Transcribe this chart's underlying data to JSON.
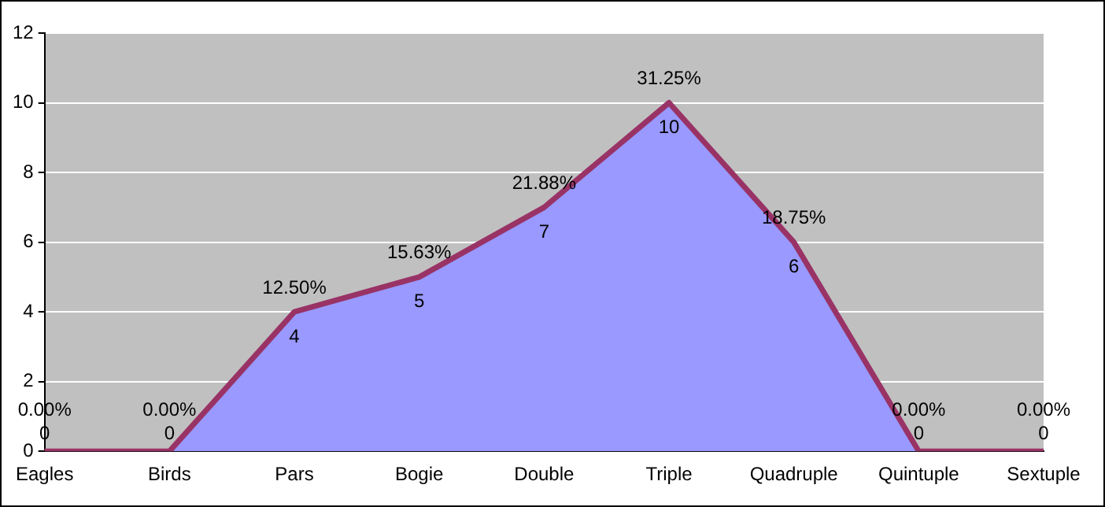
{
  "chart_data": {
    "type": "area",
    "categories": [
      "Eagles",
      "Birds",
      "Pars",
      "Bogie",
      "Double",
      "Triple",
      "Quadruple",
      "Quintuple",
      "Sextuple"
    ],
    "ylim": [
      0,
      12
    ],
    "yticks": [
      0,
      2,
      4,
      6,
      8,
      10,
      12
    ],
    "grid": "y",
    "legend": false,
    "marker": "none",
    "series": [
      {
        "color": "#9999ff",
        "values": [
          0,
          0,
          4,
          5,
          7,
          10,
          6,
          0,
          0
        ],
        "value_labels": [
          "0",
          "0",
          "4",
          "5",
          "7",
          "10",
          "6",
          "0",
          "0"
        ]
      }
    ],
    "annotations": [
      {
        "text": "0.00%",
        "x": "Eagles",
        "y": 0
      },
      {
        "text": "0.00%",
        "x": "Birds",
        "y": 0
      },
      {
        "text": "12.50%",
        "x": "Pars",
        "y": 4
      },
      {
        "text": "15.63%",
        "x": "Bogie",
        "y": 5
      },
      {
        "text": "21.88%",
        "x": "Double",
        "y": 7
      },
      {
        "text": "31.25%",
        "x": "Triple",
        "y": 10
      },
      {
        "text": "18.75%",
        "x": "Quadruple",
        "y": 6
      },
      {
        "text": "0.00%",
        "x": "Quintuple",
        "y": 0
      },
      {
        "text": "0.00%",
        "x": "Sextuple",
        "y": 0
      }
    ]
  }
}
